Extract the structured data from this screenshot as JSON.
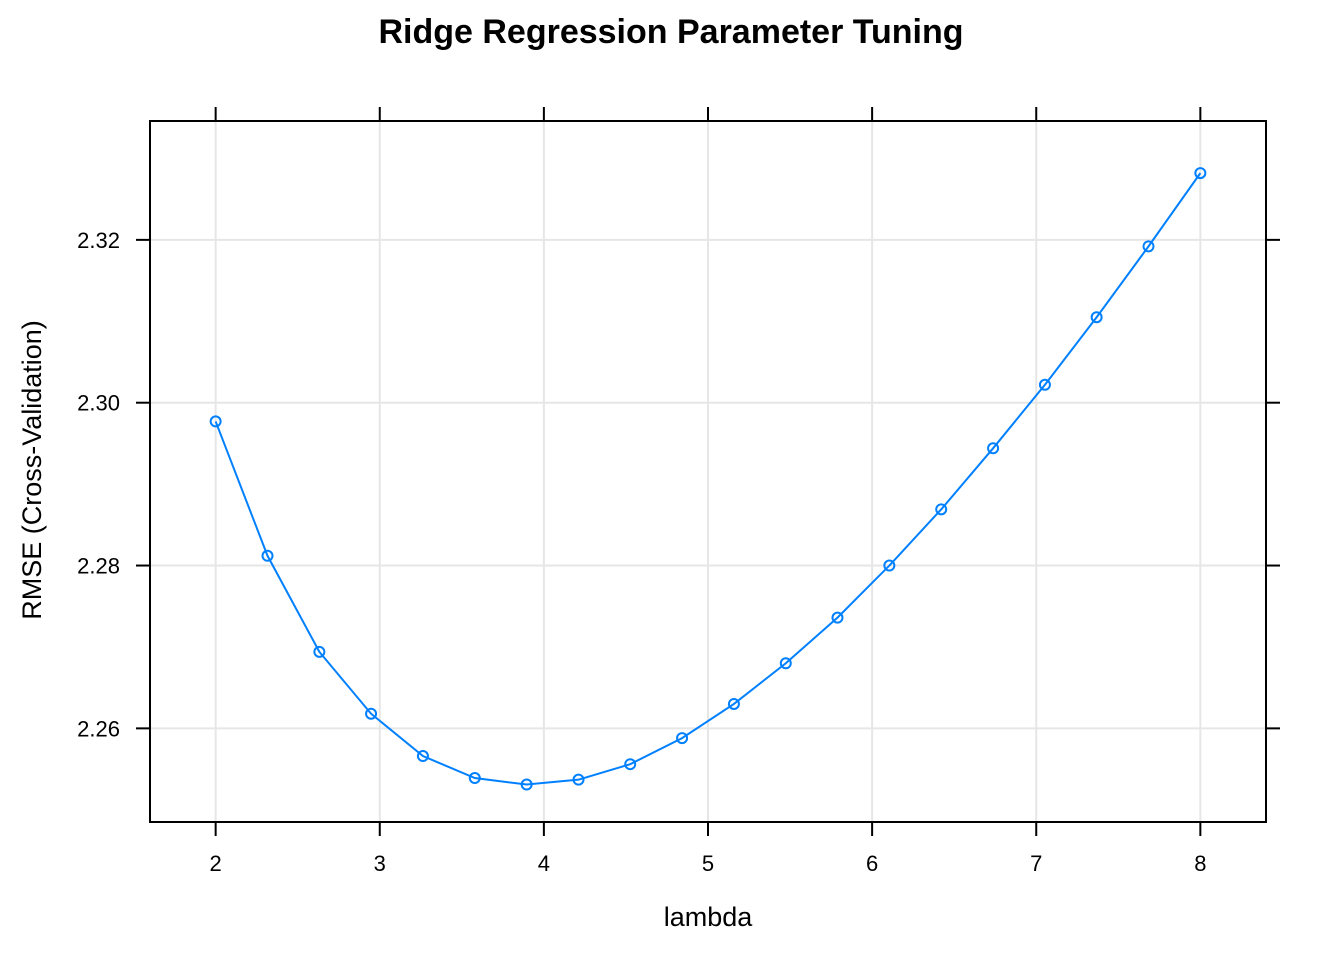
{
  "chart_data": {
    "type": "line",
    "title": "Ridge Regression Parameter Tuning",
    "xlabel": "lambda",
    "ylabel": "RMSE (Cross-Validation)",
    "xlim": [
      1.6,
      8.4
    ],
    "ylim": [
      2.2485,
      2.3346
    ],
    "x_ticks": [
      2,
      3,
      4,
      5,
      6,
      7,
      8
    ],
    "x_tick_labels": [
      "2",
      "3",
      "4",
      "5",
      "6",
      "7",
      "8"
    ],
    "y_ticks": [
      2.26,
      2.28,
      2.3,
      2.32
    ],
    "y_tick_labels": [
      "2.26",
      "2.28",
      "2.30",
      "2.32"
    ],
    "grid": true,
    "markers": "open-circle",
    "series": [
      {
        "color": "#0080ff",
        "points": [
          {
            "x": 2.0,
            "y": 2.2977
          },
          {
            "x": 2.316,
            "y": 2.2812
          },
          {
            "x": 2.632,
            "y": 2.2694
          },
          {
            "x": 2.947,
            "y": 2.2618
          },
          {
            "x": 3.263,
            "y": 2.2566
          },
          {
            "x": 3.579,
            "y": 2.2539
          },
          {
            "x": 3.895,
            "y": 2.2531
          },
          {
            "x": 4.211,
            "y": 2.2537
          },
          {
            "x": 4.526,
            "y": 2.2556
          },
          {
            "x": 4.842,
            "y": 2.2588
          },
          {
            "x": 5.158,
            "y": 2.263
          },
          {
            "x": 5.474,
            "y": 2.268
          },
          {
            "x": 5.789,
            "y": 2.2736
          },
          {
            "x": 6.105,
            "y": 2.28
          },
          {
            "x": 6.421,
            "y": 2.2869
          },
          {
            "x": 6.737,
            "y": 2.2944
          },
          {
            "x": 7.053,
            "y": 2.3022
          },
          {
            "x": 7.368,
            "y": 2.3105
          },
          {
            "x": 7.684,
            "y": 2.3192
          },
          {
            "x": 8.0,
            "y": 2.3282
          }
        ]
      }
    ]
  }
}
